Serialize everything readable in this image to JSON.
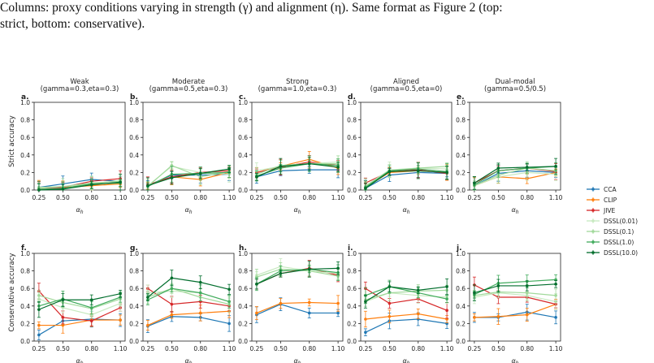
{
  "caption": {
    "line1": "Columns: proxy conditions varying in strength (γ) and alignment (η). Same format as Figure 2 (top:",
    "line2": "strict, bottom: conservative)."
  },
  "rows": [
    {
      "ylabel": "Strict accuracy"
    },
    {
      "ylabel": "Conservative accuracy"
    }
  ],
  "columns": [
    {
      "title": "Weak",
      "subtitle": "(gamma=0.3,eta=0.3)"
    },
    {
      "title": "Moderate",
      "subtitle": "(gamma=0.5,eta=0.3)"
    },
    {
      "title": "Strong",
      "subtitle": "(gamma=1.0,eta=0.3)"
    },
    {
      "title": "Aligned",
      "subtitle": "(gamma=0.5,eta=0)"
    },
    {
      "title": "Dual-modal",
      "subtitle": "(gamma=0.5/0.5)"
    }
  ],
  "chart_data": {
    "type": "line",
    "xlabel": "αh",
    "ylim": [
      0,
      1.0
    ],
    "x": [
      0.25,
      0.5,
      0.8,
      1.1
    ],
    "x_ticks": [
      "0.25",
      "0.50",
      "0.80",
      "1.10"
    ],
    "y_ticks": [
      "0.0",
      "0.2",
      "0.4",
      "0.6",
      "0.8",
      "1.0"
    ],
    "legend_placement": "right",
    "series": [
      {
        "name": "CCA",
        "color": "#1f77b4"
      },
      {
        "name": "CLIP",
        "color": "#ff7f0e"
      },
      {
        "name": "JIVE",
        "color": "#d62728"
      },
      {
        "name": "DSSL(0.01)",
        "color": "#c7e9c0"
      },
      {
        "name": "DSSL(0.1)",
        "color": "#a1d99b"
      },
      {
        "name": "DSSL(1.0)",
        "color": "#41ab5d"
      },
      {
        "name": "DSSL(10.0)",
        "color": "#006d2c"
      }
    ],
    "panels": [
      {
        "letter": "a.",
        "row": 0,
        "col": 0,
        "values": [
          [
            0.03,
            0.07,
            0.12,
            0.1
          ],
          [
            0.02,
            0.03,
            0.05,
            0.07
          ],
          [
            0.02,
            0.03,
            0.1,
            0.13
          ],
          [
            0.02,
            0.04,
            0.07,
            0.11
          ],
          [
            0.03,
            0.04,
            0.08,
            0.1
          ],
          [
            0.01,
            0.02,
            0.07,
            0.08
          ],
          [
            0.0,
            0.01,
            0.06,
            0.09
          ]
        ]
      },
      {
        "letter": "b.",
        "row": 0,
        "col": 1,
        "values": [
          [
            0.05,
            0.17,
            0.17,
            0.18
          ],
          [
            0.05,
            0.15,
            0.12,
            0.2
          ],
          [
            0.06,
            0.15,
            0.2,
            0.22
          ],
          [
            0.05,
            0.27,
            0.2,
            0.18
          ],
          [
            0.04,
            0.28,
            0.15,
            0.21
          ],
          [
            0.04,
            0.18,
            0.19,
            0.2
          ],
          [
            0.05,
            0.14,
            0.19,
            0.24
          ]
        ]
      },
      {
        "letter": "c.",
        "row": 0,
        "col": 2,
        "values": [
          [
            0.15,
            0.22,
            0.23,
            0.23
          ],
          [
            0.2,
            0.27,
            0.35,
            0.25
          ],
          [
            0.2,
            0.26,
            0.32,
            0.28
          ],
          [
            0.22,
            0.27,
            0.3,
            0.32
          ],
          [
            0.18,
            0.28,
            0.3,
            0.3
          ],
          [
            0.16,
            0.25,
            0.3,
            0.28
          ],
          [
            0.15,
            0.27,
            0.3,
            0.26
          ]
        ]
      },
      {
        "letter": "d.",
        "row": 0,
        "col": 3,
        "values": [
          [
            0.02,
            0.17,
            0.2,
            0.19
          ],
          [
            0.03,
            0.2,
            0.22,
            0.2
          ],
          [
            0.08,
            0.21,
            0.23,
            0.19
          ],
          [
            0.05,
            0.23,
            0.25,
            0.24
          ],
          [
            0.04,
            0.22,
            0.25,
            0.27
          ],
          [
            0.03,
            0.22,
            0.24,
            0.21
          ],
          [
            0.02,
            0.21,
            0.22,
            0.2
          ]
        ]
      },
      {
        "letter": "e.",
        "row": 0,
        "col": 4,
        "values": [
          [
            0.05,
            0.19,
            0.22,
            0.2
          ],
          [
            0.05,
            0.15,
            0.13,
            0.2
          ],
          [
            0.08,
            0.22,
            0.25,
            0.21
          ],
          [
            0.05,
            0.15,
            0.2,
            0.18
          ],
          [
            0.05,
            0.17,
            0.25,
            0.22
          ],
          [
            0.06,
            0.22,
            0.25,
            0.27
          ],
          [
            0.08,
            0.25,
            0.26,
            0.27
          ]
        ]
      },
      {
        "letter": "f.",
        "row": 1,
        "col": 0,
        "values": [
          [
            0.07,
            0.23,
            0.25,
            0.24
          ],
          [
            0.18,
            0.18,
            0.24,
            0.24
          ],
          [
            0.57,
            0.27,
            0.23,
            0.38
          ],
          [
            0.48,
            0.38,
            0.3,
            0.43
          ],
          [
            0.52,
            0.44,
            0.37,
            0.48
          ],
          [
            0.4,
            0.48,
            0.38,
            0.5
          ],
          [
            0.36,
            0.47,
            0.47,
            0.54
          ]
        ]
      },
      {
        "letter": "g.",
        "row": 1,
        "col": 1,
        "values": [
          [
            0.17,
            0.28,
            0.27,
            0.2
          ],
          [
            0.18,
            0.3,
            0.32,
            0.34
          ],
          [
            0.6,
            0.42,
            0.45,
            0.4
          ],
          [
            0.55,
            0.57,
            0.55,
            0.45
          ],
          [
            0.5,
            0.6,
            0.5,
            0.42
          ],
          [
            0.47,
            0.6,
            0.55,
            0.45
          ],
          [
            0.5,
            0.72,
            0.67,
            0.59
          ]
        ]
      },
      {
        "letter": "h.",
        "row": 1,
        "col": 2,
        "values": [
          [
            0.3,
            0.42,
            0.32,
            0.32
          ],
          [
            0.32,
            0.43,
            0.44,
            0.43
          ],
          [
            0.65,
            0.77,
            0.83,
            0.75
          ],
          [
            0.75,
            0.85,
            0.8,
            0.77
          ],
          [
            0.73,
            0.82,
            0.8,
            0.74
          ],
          [
            0.65,
            0.8,
            0.82,
            0.78
          ],
          [
            0.65,
            0.77,
            0.82,
            0.83
          ]
        ]
      },
      {
        "letter": "i.",
        "row": 1,
        "col": 3,
        "values": [
          [
            0.1,
            0.23,
            0.25,
            0.2
          ],
          [
            0.25,
            0.28,
            0.31,
            0.25
          ],
          [
            0.6,
            0.43,
            0.48,
            0.35
          ],
          [
            0.45,
            0.55,
            0.52,
            0.5
          ],
          [
            0.47,
            0.55,
            0.57,
            0.58
          ],
          [
            0.52,
            0.62,
            0.55,
            0.48
          ],
          [
            0.45,
            0.62,
            0.58,
            0.62
          ]
        ]
      },
      {
        "letter": "j.",
        "row": 1,
        "col": 4,
        "values": [
          [
            0.27,
            0.27,
            0.33,
            0.27
          ],
          [
            0.27,
            0.28,
            0.3,
            0.42
          ],
          [
            0.64,
            0.5,
            0.5,
            0.42
          ],
          [
            0.5,
            0.55,
            0.52,
            0.45
          ],
          [
            0.52,
            0.56,
            0.55,
            0.52
          ],
          [
            0.53,
            0.66,
            0.68,
            0.7
          ],
          [
            0.55,
            0.63,
            0.63,
            0.65
          ]
        ]
      }
    ]
  }
}
